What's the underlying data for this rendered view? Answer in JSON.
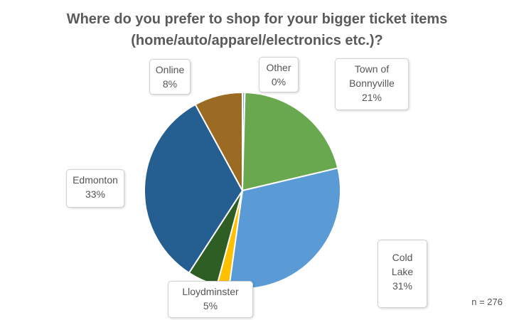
{
  "chart_data": {
    "type": "pie",
    "title": "Where do you prefer to shop for your bigger ticket items (home/auto/apparel/electronics etc.)?",
    "title_lines": [
      "Where do you prefer to shop for your bigger ticket items",
      "(home/auto/apparel/electronics etc.)?"
    ],
    "slices": [
      {
        "label": "Other",
        "value_label": "0%",
        "value": 0.4,
        "color": "#7aa9dc"
      },
      {
        "label": "Town of Bonnyville",
        "value_label": "21%",
        "value": 21,
        "color": "#6aa84f"
      },
      {
        "label": "Cold Lake",
        "value_label": "31%",
        "value": 31,
        "color": "#5b9bd5"
      },
      {
        "label": "",
        "value_label": "",
        "value": 2,
        "color": "#ffc000"
      },
      {
        "label": "Lloydminster",
        "value_label": "5%",
        "value": 5,
        "color": "#2e5e24"
      },
      {
        "label": "Edmonton",
        "value_label": "33%",
        "value": 33,
        "color": "#255e91"
      },
      {
        "label": "Online",
        "value_label": "8%",
        "value": 8,
        "color": "#9b6a23"
      }
    ],
    "labels": {
      "other": "Other\n0%",
      "bonnyville": "Town of\nBonnyville\n21%",
      "cold_lake": "Cold\nLake\n31%",
      "lloydminster": "Lloydminster\n5%",
      "edmonton": "Edmonton\n33%",
      "online": "Online\n8%"
    },
    "note": "n = 276"
  }
}
